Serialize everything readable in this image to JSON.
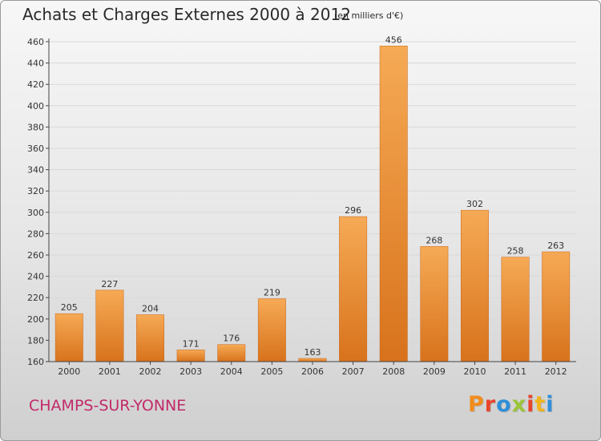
{
  "header": {
    "title": "Achats et Charges Externes 2000 à 2012",
    "subtitle": "(en milliers d'€)"
  },
  "footer": {
    "commune": "CHAMPS-SUR-YONNE",
    "logo_text": "Proxiti",
    "logo_colors": [
      "#f28c1c",
      "#e8442b",
      "#2f8fd8",
      "#9ac53a",
      "#e8442b",
      "#f2b31c",
      "#2f8fd8"
    ]
  },
  "colors": {
    "bar_light": "#f6aa55",
    "bar_dark": "#d8721c",
    "axis": "#444444",
    "grid": "#d9d9d9"
  },
  "chart_data": {
    "type": "bar",
    "categories": [
      "2000",
      "2001",
      "2002",
      "2003",
      "2004",
      "2005",
      "2006",
      "2007",
      "2008",
      "2009",
      "2010",
      "2011",
      "2012"
    ],
    "values": [
      205,
      227,
      204,
      171,
      176,
      219,
      163,
      296,
      456,
      268,
      302,
      258,
      263
    ],
    "ylim": [
      160,
      460
    ],
    "yticks": [
      160,
      180,
      200,
      220,
      240,
      260,
      280,
      300,
      320,
      340,
      360,
      380,
      400,
      420,
      440,
      460
    ],
    "grid": true,
    "data_labels": true
  }
}
